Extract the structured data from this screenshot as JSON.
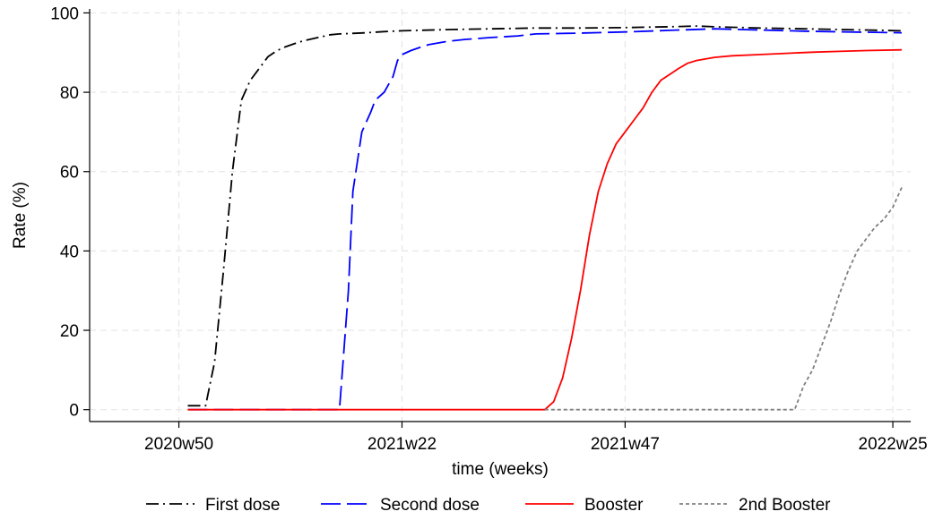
{
  "chart_data": {
    "type": "line",
    "title": "",
    "xlabel": "time (weeks)",
    "ylabel": "Rate (%)",
    "x_ticks": [
      {
        "label": "2020w50",
        "index": 0
      },
      {
        "label": "2021w22",
        "index": 25
      },
      {
        "label": "2021w47",
        "index": 50
      },
      {
        "label": "2022w25",
        "index": 80
      }
    ],
    "xlim": [
      -10,
      82
    ],
    "ylim": [
      -3,
      101
    ],
    "y_ticks": [
      0,
      20,
      40,
      60,
      80,
      100
    ],
    "grid": true,
    "legend_position": "bottom",
    "series": [
      {
        "name": "First dose",
        "color": "#000000",
        "dash": "dashdot",
        "points": [
          [
            1,
            1
          ],
          [
            3,
            1
          ],
          [
            4,
            12
          ],
          [
            5,
            35
          ],
          [
            6,
            60
          ],
          [
            7,
            78
          ],
          [
            8,
            83
          ],
          [
            9,
            86
          ],
          [
            10,
            89
          ],
          [
            11,
            90.5
          ],
          [
            12,
            91.5
          ],
          [
            13,
            92.3
          ],
          [
            14,
            93
          ],
          [
            15,
            93.5
          ],
          [
            16,
            94
          ],
          [
            17,
            94.5
          ],
          [
            18,
            94.7
          ],
          [
            19,
            94.8
          ],
          [
            21,
            95
          ],
          [
            23,
            95.3
          ],
          [
            25,
            95.5
          ],
          [
            30,
            95.8
          ],
          [
            35,
            96
          ],
          [
            40,
            96.2
          ],
          [
            45,
            96.2
          ],
          [
            50,
            96.3
          ],
          [
            55,
            96.5
          ],
          [
            58,
            96.7
          ],
          [
            60,
            96.5
          ],
          [
            65,
            96.2
          ],
          [
            70,
            96
          ],
          [
            75,
            95.8
          ],
          [
            81,
            95.5
          ]
        ]
      },
      {
        "name": "Second dose",
        "color": "#0000ff",
        "dash": "longdash",
        "points": [
          [
            1,
            0
          ],
          [
            10,
            0
          ],
          [
            18,
            0
          ],
          [
            18,
            0.2
          ],
          [
            19,
            30
          ],
          [
            19.5,
            55
          ],
          [
            20.5,
            70
          ],
          [
            21.5,
            75
          ],
          [
            22,
            78
          ],
          [
            23,
            80
          ],
          [
            24,
            84
          ],
          [
            24.5,
            88
          ],
          [
            25,
            89.5
          ],
          [
            26,
            90.5
          ],
          [
            27,
            91.3
          ],
          [
            28,
            92
          ],
          [
            30,
            92.8
          ],
          [
            32,
            93.3
          ],
          [
            35,
            93.8
          ],
          [
            38,
            94.2
          ],
          [
            40,
            94.7
          ],
          [
            45,
            94.9
          ],
          [
            50,
            95.2
          ],
          [
            55,
            95.6
          ],
          [
            60,
            96
          ],
          [
            65,
            95.7
          ],
          [
            70,
            95.4
          ],
          [
            75,
            95.2
          ],
          [
            81,
            95
          ]
        ]
      },
      {
        "name": "Booster",
        "color": "#ff0000",
        "dash": "solid",
        "points": [
          [
            1,
            0
          ],
          [
            41,
            0
          ],
          [
            42,
            2
          ],
          [
            43,
            8
          ],
          [
            44,
            18
          ],
          [
            45,
            30
          ],
          [
            46,
            44
          ],
          [
            47,
            55
          ],
          [
            48,
            62
          ],
          [
            49,
            67
          ],
          [
            50,
            70
          ],
          [
            51,
            73
          ],
          [
            52,
            76
          ],
          [
            53,
            80
          ],
          [
            54,
            83
          ],
          [
            55,
            84.5
          ],
          [
            56,
            86
          ],
          [
            57,
            87.3
          ],
          [
            58,
            88
          ],
          [
            60,
            88.8
          ],
          [
            62,
            89.2
          ],
          [
            65,
            89.5
          ],
          [
            68,
            89.8
          ],
          [
            71,
            90.1
          ],
          [
            74,
            90.3
          ],
          [
            77,
            90.5
          ],
          [
            81,
            90.7
          ]
        ]
      },
      {
        "name": "2nd Booster",
        "color": "#808080",
        "dash": "dotted",
        "points": [
          [
            41,
            0
          ],
          [
            65,
            0
          ],
          [
            69,
            0
          ],
          [
            70,
            6
          ],
          [
            71,
            10
          ],
          [
            72,
            16
          ],
          [
            73,
            22
          ],
          [
            74,
            29
          ],
          [
            75,
            35
          ],
          [
            76,
            40
          ],
          [
            77,
            43
          ],
          [
            78,
            46
          ],
          [
            79,
            48
          ],
          [
            80,
            51
          ],
          [
            81,
            56
          ]
        ]
      }
    ]
  }
}
